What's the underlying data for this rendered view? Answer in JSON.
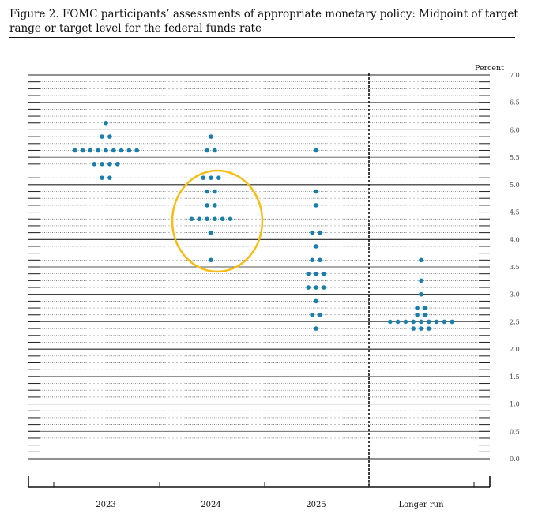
{
  "figure": {
    "title": "Figure 2.  FOMC participants’ assessments of appropriate monetary policy: Midpoint of target range or target level for the federal funds rate"
  },
  "highlight_color": "#f6bd16",
  "dot_color": "#1b7fab",
  "chart_data": {
    "type": "scatter",
    "title": "",
    "ylabel": "Percent",
    "ylim": [
      0,
      7.0
    ],
    "yticks": [
      "0.0",
      "0.5",
      "1.0",
      "1.5",
      "2.0",
      "2.5",
      "3.0",
      "3.5",
      "4.0",
      "4.5",
      "5.0",
      "5.5",
      "6.0",
      "6.5",
      "7.0"
    ],
    "grid": true,
    "legend": "none",
    "annotation": "circle highlighting the 2024 projections",
    "categories": [
      "2023",
      "2024",
      "2025",
      "Longer run"
    ],
    "series": [
      {
        "category": "2023",
        "points": [
          {
            "y": 6.125,
            "count": 1
          },
          {
            "y": 5.875,
            "count": 2
          },
          {
            "y": 5.625,
            "count": 9
          },
          {
            "y": 5.375,
            "count": 4
          },
          {
            "y": 5.125,
            "count": 2
          }
        ]
      },
      {
        "category": "2024",
        "points": [
          {
            "y": 5.875,
            "count": 1
          },
          {
            "y": 5.625,
            "count": 2
          },
          {
            "y": 5.125,
            "count": 3
          },
          {
            "y": 4.875,
            "count": 2
          },
          {
            "y": 4.625,
            "count": 2
          },
          {
            "y": 4.375,
            "count": 6
          },
          {
            "y": 4.125,
            "count": 1
          },
          {
            "y": 3.625,
            "count": 1
          }
        ]
      },
      {
        "category": "2025",
        "points": [
          {
            "y": 5.625,
            "count": 1
          },
          {
            "y": 4.875,
            "count": 1
          },
          {
            "y": 4.625,
            "count": 1
          },
          {
            "y": 4.125,
            "count": 2
          },
          {
            "y": 3.875,
            "count": 1
          },
          {
            "y": 3.625,
            "count": 2
          },
          {
            "y": 3.375,
            "count": 3
          },
          {
            "y": 3.125,
            "count": 3
          },
          {
            "y": 2.875,
            "count": 1
          },
          {
            "y": 2.625,
            "count": 2
          },
          {
            "y": 2.375,
            "count": 1
          }
        ]
      },
      {
        "category": "Longer run",
        "points": [
          {
            "y": 3.625,
            "count": 1
          },
          {
            "y": 3.25,
            "count": 1
          },
          {
            "y": 3.0,
            "count": 1
          },
          {
            "y": 2.75,
            "count": 2
          },
          {
            "y": 2.625,
            "count": 2
          },
          {
            "y": 2.5,
            "count": 9
          },
          {
            "y": 2.375,
            "count": 3
          }
        ]
      }
    ]
  }
}
